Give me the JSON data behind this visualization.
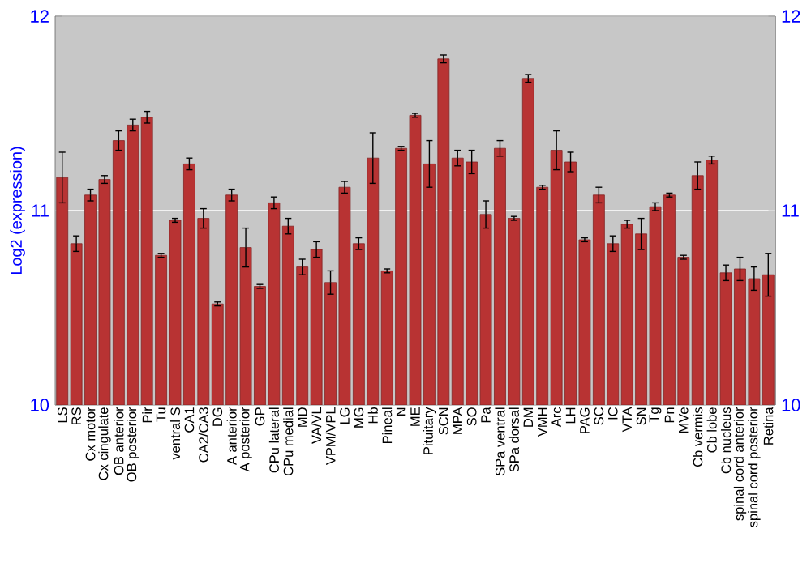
{
  "chart_data": {
    "type": "bar",
    "ylabel": "Log2 (expression)",
    "categories": [
      "LS",
      "RS",
      "Cx motor",
      "Cx cingulate",
      "OB anterior",
      "OB posterior",
      "Pir",
      "Tu",
      "ventral S",
      "CA1",
      "CA2/CA3",
      "DG",
      "A anterior",
      "A posterior",
      "GP",
      "CPu lateral",
      "CPu medial",
      "MD",
      "VA/VL",
      "VPM/VPL",
      "LG",
      "MG",
      "Hb",
      "Pineal",
      "N",
      "ME",
      "Pituitary",
      "SCN",
      "MPA",
      "SO",
      "Pa",
      "SPa ventral",
      "SPa dorsal",
      "DM",
      "VMH",
      "Arc",
      "LH",
      "PAG",
      "SC",
      "IC",
      "VTA",
      "SN",
      "Tg",
      "Pn",
      "MVe",
      "Cb vermis",
      "Cb lobe",
      "Cb nucleus",
      "spinal cord anterior",
      "spinal cord posterior",
      "Retina"
    ],
    "values": [
      11.17,
      10.83,
      11.08,
      11.16,
      11.36,
      11.44,
      11.48,
      10.77,
      10.95,
      11.24,
      10.96,
      10.52,
      11.08,
      10.81,
      10.61,
      11.04,
      10.92,
      10.71,
      10.8,
      10.63,
      11.12,
      10.83,
      11.27,
      10.69,
      11.32,
      11.49,
      11.24,
      11.78,
      11.27,
      11.25,
      10.98,
      11.32,
      10.96,
      11.68,
      11.12,
      11.31,
      11.25,
      10.85,
      11.08,
      10.83,
      10.93,
      10.88,
      11.02,
      11.08,
      10.76,
      11.18,
      11.26,
      10.68,
      10.7,
      10.65,
      10.67
    ],
    "errors": [
      0.13,
      0.04,
      0.03,
      0.02,
      0.05,
      0.03,
      0.03,
      0.01,
      0.01,
      0.03,
      0.05,
      0.01,
      0.03,
      0.1,
      0.01,
      0.03,
      0.04,
      0.04,
      0.04,
      0.06,
      0.03,
      0.03,
      0.13,
      0.01,
      0.01,
      0.01,
      0.12,
      0.02,
      0.04,
      0.06,
      0.07,
      0.04,
      0.01,
      0.02,
      0.01,
      0.1,
      0.05,
      0.01,
      0.04,
      0.04,
      0.02,
      0.08,
      0.02,
      0.01,
      0.01,
      0.07,
      0.02,
      0.04,
      0.06,
      0.06,
      0.11
    ],
    "color": "#b83333",
    "ylim": [
      10,
      12
    ],
    "yticks": [
      10,
      11,
      12
    ],
    "y2lim": [
      10,
      12
    ],
    "y2ticks": [
      10,
      11,
      12
    ],
    "grid": "y"
  }
}
